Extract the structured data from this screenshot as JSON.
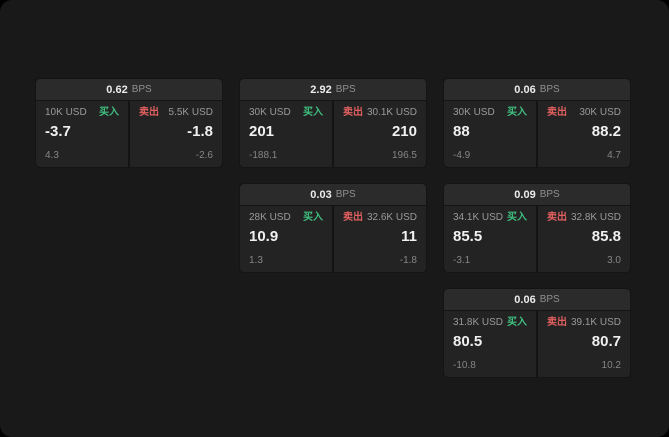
{
  "labels": {
    "bps_suffix": "BPS",
    "buy": "买入",
    "sell": "卖出"
  },
  "colors": {
    "buy_accent": "#3fbf7f",
    "sell_accent": "#e15f5f",
    "surface": "#191919",
    "card_header": "#2b2b2b",
    "panel": "#232323"
  },
  "cards": [
    {
      "bps": "0.62",
      "buy": {
        "size": "10K USD",
        "price": "-3.7",
        "change": "4.3"
      },
      "sell": {
        "size": "5.5K USD",
        "price": "-1.8",
        "change": "-2.6"
      }
    },
    {
      "bps": "2.92",
      "buy": {
        "size": "30K USD",
        "price": "201",
        "change": "-188.1"
      },
      "sell": {
        "size": "30.1K USD",
        "price": "210",
        "change": "196.5"
      }
    },
    {
      "bps": "0.06",
      "buy": {
        "size": "30K USD",
        "price": "88",
        "change": "-4.9"
      },
      "sell": {
        "size": "30K USD",
        "price": "88.2",
        "change": "4.7"
      }
    },
    {
      "bps": "0.03",
      "buy": {
        "size": "28K USD",
        "price": "10.9",
        "change": "1.3"
      },
      "sell": {
        "size": "32.6K USD",
        "price": "11",
        "change": "-1.8"
      }
    },
    {
      "bps": "0.09",
      "buy": {
        "size": "34.1K USD",
        "price": "85.5",
        "change": "-3.1"
      },
      "sell": {
        "size": "32.8K USD",
        "price": "85.8",
        "change": "3.0"
      }
    },
    {
      "bps": "0.06",
      "buy": {
        "size": "31.8K USD",
        "price": "80.5",
        "change": "-10.8"
      },
      "sell": {
        "size": "39.1K USD",
        "price": "80.7",
        "change": "10.2"
      }
    }
  ]
}
